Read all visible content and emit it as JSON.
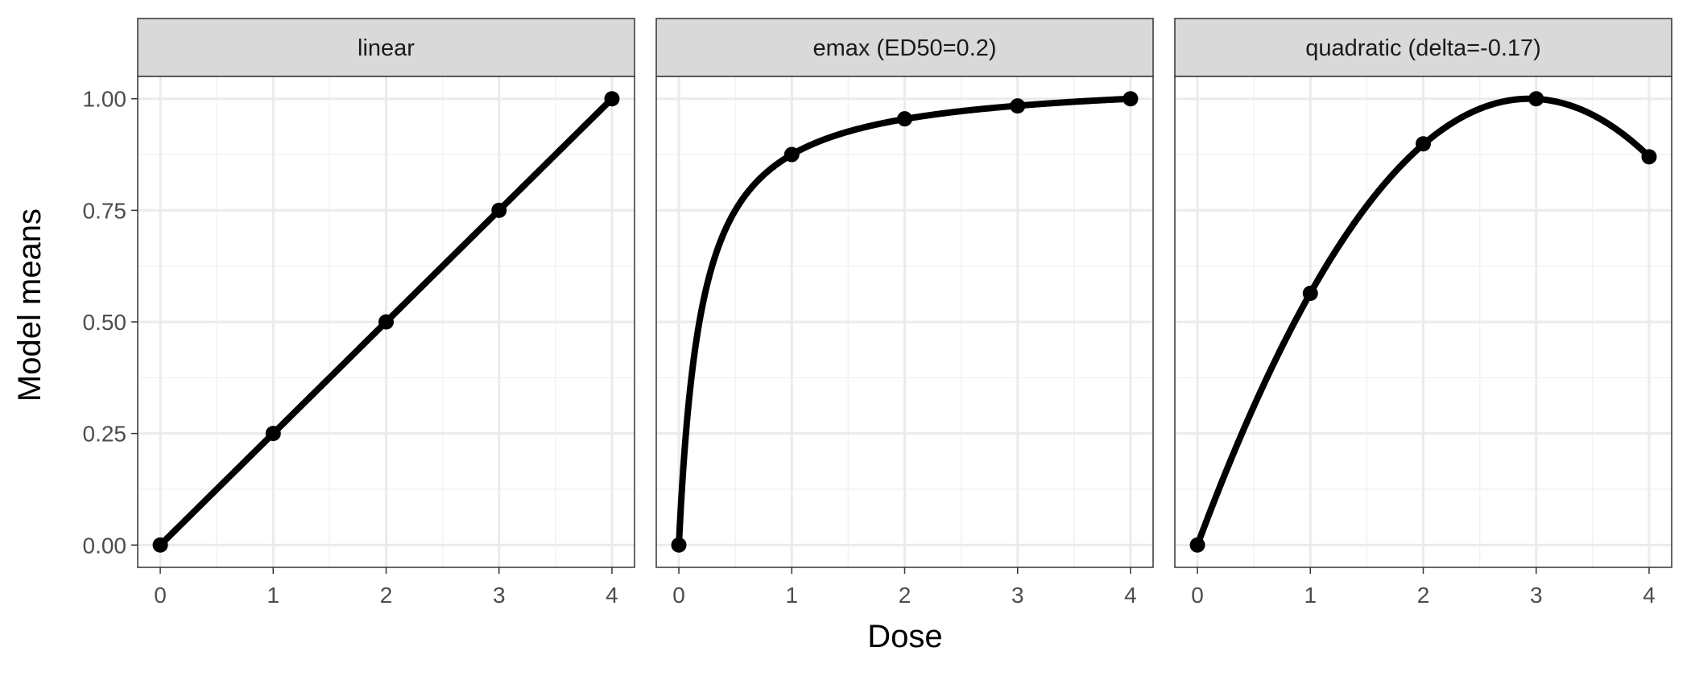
{
  "chart_data": {
    "type": "line",
    "xlabel": "Dose",
    "ylabel": "Model means",
    "xlim": [
      -0.2,
      4.2
    ],
    "ylim": [
      -0.05,
      1.05
    ],
    "x_ticks": [
      0,
      1,
      2,
      3,
      4
    ],
    "x_tick_labels": [
      "0",
      "1",
      "2",
      "3",
      "4"
    ],
    "y_ticks": [
      0,
      0.25,
      0.5,
      0.75,
      1
    ],
    "y_tick_labels": [
      "0.00",
      "0.25",
      "0.50",
      "0.75",
      "1.00"
    ],
    "grid": true,
    "line_color": "#000000",
    "panels": [
      {
        "title": "linear",
        "curve": "linear",
        "x": [
          0,
          1,
          2,
          3,
          4
        ],
        "y": [
          0,
          0.25,
          0.5,
          0.75,
          1.0
        ]
      },
      {
        "title": "emax (ED50=0.2)",
        "curve": "emax",
        "ed50": 0.2,
        "x": [
          0,
          1,
          2,
          3,
          4
        ],
        "y": [
          0,
          0.875,
          0.955,
          0.984,
          1.0
        ]
      },
      {
        "title": "quadratic (delta=-0.17)",
        "curve": "quadratic",
        "delta": -0.17,
        "x": [
          0,
          1,
          2,
          3,
          4
        ],
        "y": [
          0,
          0.564,
          0.899,
          1.0,
          0.87
        ]
      }
    ]
  }
}
